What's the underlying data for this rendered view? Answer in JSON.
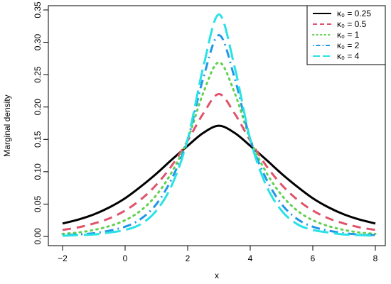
{
  "chart_data": {
    "type": "line",
    "title": "",
    "xlabel": "x",
    "ylabel": "Marginal density",
    "xlim": [
      -2,
      8
    ],
    "ylim": [
      0,
      0.35
    ],
    "xticks": [
      -2,
      0,
      2,
      4,
      6,
      8
    ],
    "yticks": [
      0.0,
      0.05,
      0.1,
      0.15,
      0.2,
      0.25,
      0.3,
      0.35
    ],
    "ytick_labels": [
      "0.00",
      "0.05",
      "0.10",
      "0.15",
      "0.20",
      "0.25",
      "0.30",
      "0.35"
    ],
    "xtick_labels": [
      "−2",
      "0",
      "2",
      "4",
      "6",
      "8"
    ],
    "grid": false,
    "legend_position": "top-right",
    "x": [
      -2,
      -1.5,
      -1,
      -0.5,
      0,
      0.5,
      1,
      1.5,
      2,
      2.5,
      3,
      3.5,
      4,
      4.5,
      5,
      5.5,
      6,
      6.5,
      7,
      7.5,
      8
    ],
    "series": [
      {
        "name": "κ₀ = 0.25",
        "color": "#000000",
        "dash": "solid",
        "values": [
          0.02,
          0.026,
          0.034,
          0.045,
          0.059,
          0.077,
          0.097,
          0.119,
          0.14,
          0.16,
          0.171,
          0.16,
          0.14,
          0.119,
          0.097,
          0.077,
          0.059,
          0.045,
          0.034,
          0.026,
          0.02
        ]
      },
      {
        "name": "κ₀ = 0.5",
        "color": "#DF536B",
        "dash": "dashed",
        "values": [
          0.01,
          0.014,
          0.02,
          0.028,
          0.04,
          0.057,
          0.08,
          0.11,
          0.148,
          0.19,
          0.22,
          0.19,
          0.148,
          0.11,
          0.08,
          0.057,
          0.04,
          0.028,
          0.02,
          0.014,
          0.01
        ]
      },
      {
        "name": "κ₀ = 1",
        "color": "#61D04F",
        "dash": "dotted",
        "values": [
          0.004,
          0.006,
          0.01,
          0.016,
          0.025,
          0.04,
          0.064,
          0.1,
          0.15,
          0.222,
          0.269,
          0.222,
          0.15,
          0.1,
          0.064,
          0.04,
          0.025,
          0.016,
          0.01,
          0.006,
          0.004
        ]
      },
      {
        "name": "κ₀ = 2",
        "color": "#2297E6",
        "dash": "dotdash",
        "values": [
          0.002,
          0.003,
          0.005,
          0.009,
          0.015,
          0.027,
          0.05,
          0.09,
          0.15,
          0.245,
          0.311,
          0.245,
          0.15,
          0.09,
          0.05,
          0.027,
          0.015,
          0.009,
          0.005,
          0.003,
          0.002
        ]
      },
      {
        "name": "κ₀ = 4",
        "color": "#28E2E5",
        "dash": "longdash",
        "values": [
          0.001,
          0.002,
          0.003,
          0.006,
          0.01,
          0.019,
          0.04,
          0.08,
          0.15,
          0.262,
          0.343,
          0.262,
          0.15,
          0.08,
          0.04,
          0.019,
          0.01,
          0.006,
          0.003,
          0.002,
          0.001
        ]
      }
    ]
  }
}
